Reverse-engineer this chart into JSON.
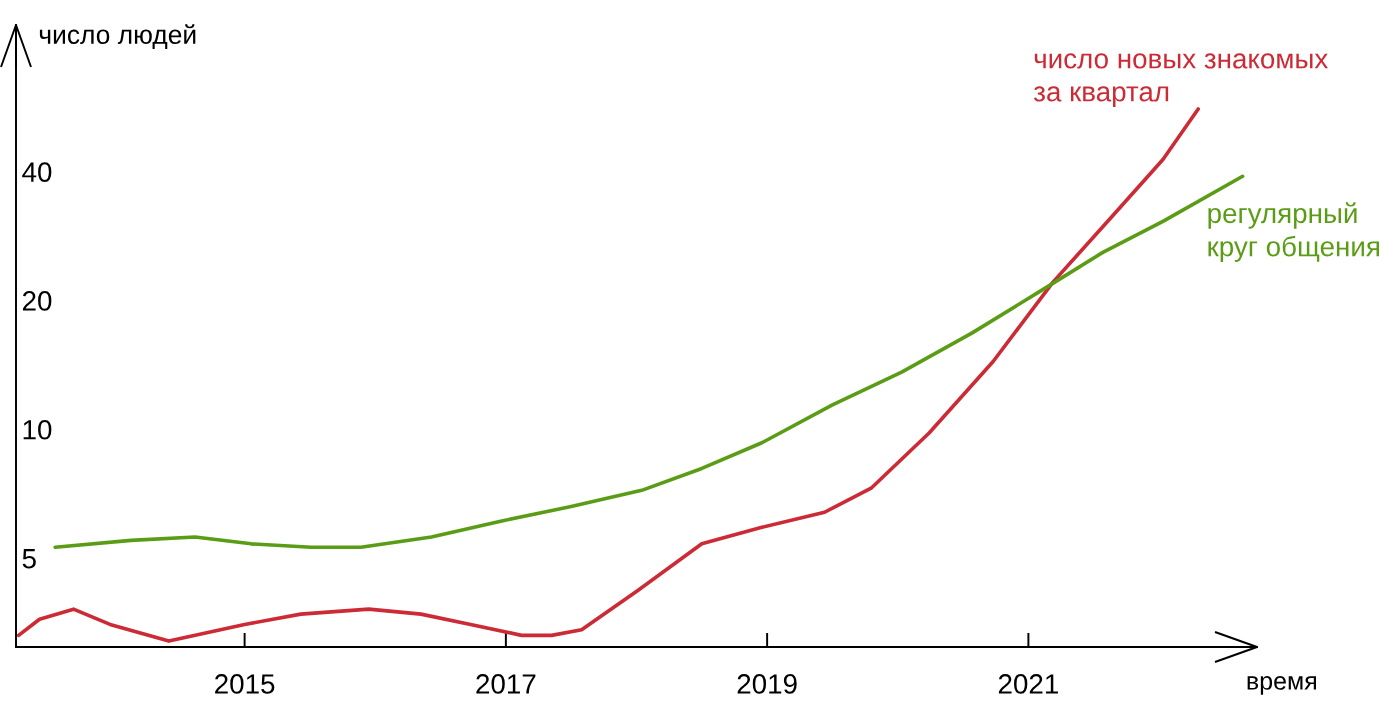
{
  "chart_data": {
    "type": "line",
    "xlabel": "время",
    "ylabel": "число людей",
    "log": "y",
    "xlim": [
      2013.25,
      2022.75
    ],
    "xticks": [
      2015,
      2017,
      2019,
      2021
    ],
    "ylim": [
      3.1,
      88
    ],
    "yticks": [
      5,
      10,
      20,
      40
    ],
    "grid": false,
    "legend": false,
    "line_style": "solid",
    "series": [
      {
        "name": "число новых знакомых\nза квартал",
        "color": "#cc2b36",
        "x": [
          2013.27,
          2013.43,
          2013.69,
          2013.97,
          2014.42,
          2015.0,
          2015.43,
          2015.95,
          2016.35,
          2016.73,
          2017.12,
          2017.35,
          2017.58,
          2018.01,
          2018.5,
          2018.96,
          2019.44,
          2019.8,
          2020.24,
          2020.73,
          2021.19,
          2021.64,
          2022.03,
          2022.3
        ],
        "values": [
          3.3,
          3.6,
          3.8,
          3.5,
          3.2,
          3.5,
          3.7,
          3.8,
          3.7,
          3.5,
          3.3,
          3.3,
          3.4,
          4.2,
          5.4,
          5.9,
          6.4,
          7.3,
          9.8,
          14.4,
          22.1,
          31.4,
          42.7,
          56
        ]
      },
      {
        "name": "регулярный\nкруг общения",
        "color": "#5b9c17",
        "x": [
          2013.55,
          2014.13,
          2014.62,
          2015.05,
          2015.51,
          2015.89,
          2016.43,
          2016.96,
          2017.5,
          2018.04,
          2018.5,
          2018.96,
          2019.5,
          2020.03,
          2020.57,
          2021.11,
          2021.57,
          2022.03,
          2022.64
        ],
        "values": [
          5.3,
          5.5,
          5.6,
          5.4,
          5.3,
          5.3,
          5.6,
          6.1,
          6.6,
          7.2,
          8.1,
          9.3,
          11.4,
          13.6,
          16.8,
          21.2,
          25.9,
          30.6,
          39
        ]
      }
    ]
  }
}
